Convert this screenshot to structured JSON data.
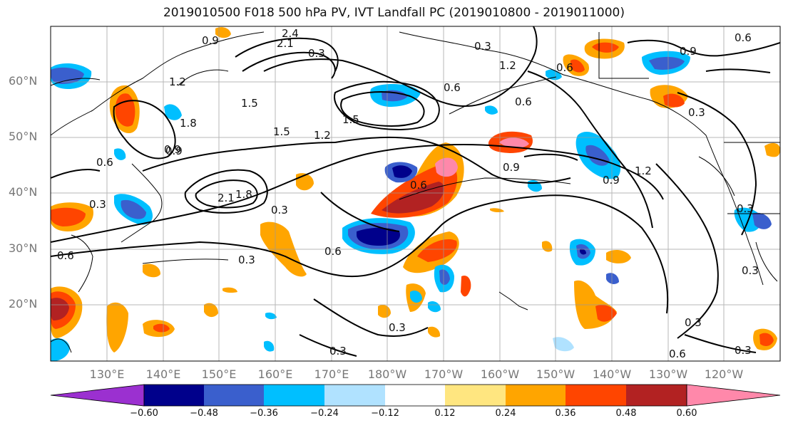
{
  "title": "2019010500 F018 500 hPa PV, IVT Landfall PC (2019010800 - 2019011000)",
  "latitude_labels": [
    "60°N",
    "50°N",
    "40°N",
    "30°N",
    "20°N"
  ],
  "longitude_labels": [
    "130°E",
    "140°E",
    "150°E",
    "160°E",
    "170°E",
    "180°W",
    "170°W",
    "160°W",
    "150°W",
    "140°W",
    "130°W",
    "120°W"
  ],
  "colorbar": {
    "ticks": [
      "−0.60",
      "−0.48",
      "−0.36",
      "−0.24",
      "−0.12",
      "0.12",
      "0.24",
      "0.36",
      "0.48",
      "0.60"
    ],
    "colors": [
      "#9b30d0",
      "#00008b",
      "#3a5fcd",
      "#00bfff",
      "#b0e2ff",
      "#ffffff",
      "#ffe680",
      "#ffa500",
      "#ff4500",
      "#b22222",
      "#ff88aa"
    ]
  },
  "contour_labels": [
    "0.9",
    "2.4",
    "2.1",
    "0.3",
    "1.5",
    "1.2",
    "0.9",
    "0.6",
    "1.8",
    "1.5",
    "1.5",
    "1.2",
    "0.9",
    "0.3",
    "0.6",
    "2.1",
    "1.8",
    "0.6",
    "0.3",
    "0.3",
    "0.6",
    "0.3",
    "0.3",
    "0.6",
    "0.9",
    "0.9",
    "1.2",
    "0.6",
    "0.3",
    "0.3",
    "0.3",
    "0.3",
    "0.6",
    "0.3",
    "0.9",
    "0.6",
    "1.2",
    "0.6",
    "0.3"
  ]
}
